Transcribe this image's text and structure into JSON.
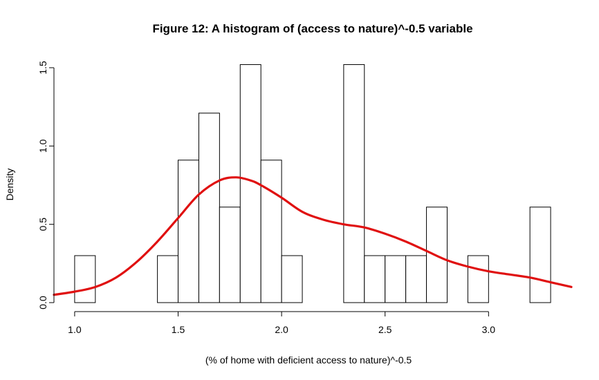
{
  "chart_data": {
    "type": "bar",
    "title": "Figure 12: A histogram of (access to nature)^-0.5 variable",
    "xlabel": "(% of home with deficient access to nature)^-0.5",
    "ylabel": "Density",
    "xlim": [
      0.9,
      3.4
    ],
    "ylim": [
      0,
      1.5
    ],
    "x_ticks": [
      "1.0",
      "1.5",
      "2.0",
      "2.5",
      "3.0"
    ],
    "y_ticks": [
      "0.0",
      "0.5",
      "1.0",
      "1.5"
    ],
    "bin_width": 0.1,
    "bins": [
      {
        "start": 1.0,
        "end": 1.1,
        "density": 0.3
      },
      {
        "start": 1.4,
        "end": 1.5,
        "density": 0.3
      },
      {
        "start": 1.5,
        "end": 1.6,
        "density": 0.91
      },
      {
        "start": 1.6,
        "end": 1.7,
        "density": 1.21
      },
      {
        "start": 1.7,
        "end": 1.8,
        "density": 0.61
      },
      {
        "start": 1.8,
        "end": 1.9,
        "density": 1.52
      },
      {
        "start": 1.9,
        "end": 2.0,
        "density": 0.91
      },
      {
        "start": 2.0,
        "end": 2.1,
        "density": 0.3
      },
      {
        "start": 2.3,
        "end": 2.4,
        "density": 1.52
      },
      {
        "start": 2.4,
        "end": 2.5,
        "density": 0.3
      },
      {
        "start": 2.5,
        "end": 2.6,
        "density": 0.3
      },
      {
        "start": 2.6,
        "end": 2.7,
        "density": 0.3
      },
      {
        "start": 2.7,
        "end": 2.8,
        "density": 0.61
      },
      {
        "start": 2.9,
        "end": 3.0,
        "density": 0.3
      },
      {
        "start": 3.2,
        "end": 3.3,
        "density": 0.61
      }
    ],
    "density_curve": {
      "color": "#e01010",
      "x": [
        0.9,
        1.0,
        1.1,
        1.2,
        1.3,
        1.4,
        1.5,
        1.6,
        1.7,
        1.78,
        1.85,
        1.9,
        2.0,
        2.1,
        2.2,
        2.3,
        2.4,
        2.5,
        2.6,
        2.7,
        2.8,
        2.9,
        3.0,
        3.1,
        3.2,
        3.3,
        3.4
      ],
      "y": [
        0.05,
        0.07,
        0.1,
        0.16,
        0.26,
        0.39,
        0.54,
        0.69,
        0.78,
        0.8,
        0.78,
        0.75,
        0.67,
        0.58,
        0.53,
        0.5,
        0.48,
        0.44,
        0.39,
        0.33,
        0.27,
        0.23,
        0.2,
        0.18,
        0.16,
        0.13,
        0.1
      ]
    }
  }
}
